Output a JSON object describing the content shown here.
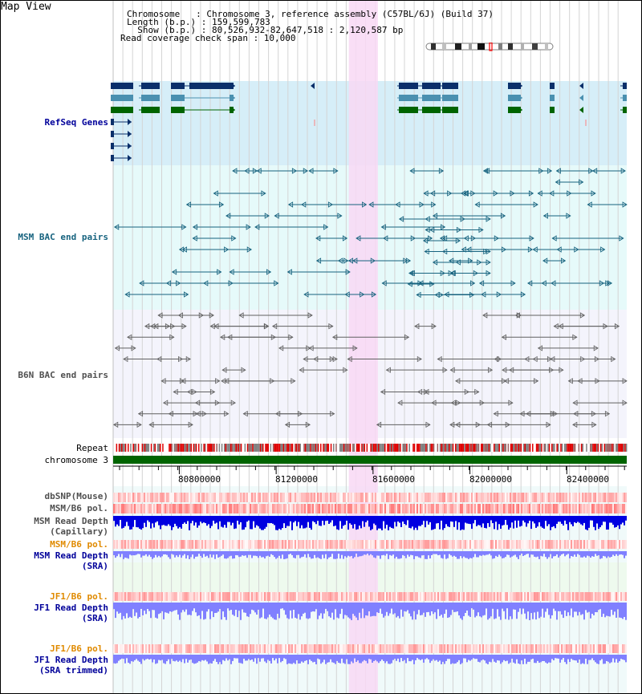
{
  "title": "Map View",
  "info": {
    "chromosome": "Chromosome   : Chromosome 3, reference assembly (C57BL/6J) (Build 37)",
    "length": "Length (b.p.) : 159,599,783",
    "show": "  Show (b.p.) : 80,526,932-82,647,518 : 2,120,587 bp",
    "coverage": "Read coverage check span : 10,000"
  },
  "axis": {
    "start": 80526932,
    "end": 82647518,
    "ticks": [
      "80800000",
      "81200000",
      "81600000",
      "82000000",
      "82400000"
    ],
    "tick_values": [
      80800000,
      81200000,
      81600000,
      82000000,
      82400000
    ],
    "highlight": [
      81500000,
      81620000
    ]
  },
  "tracks": {
    "refseq": "RefSeq Genes",
    "msm_bac": "MSM BAC end pairs",
    "b6n_bac": "B6N BAC end pairs",
    "repeat": "Repeat",
    "chromosome": "chromosome 3",
    "dbsnp": "dbSNP(Mouse)",
    "msm_b6_pol": "MSM/B6 pol.",
    "msm_depth_cap_1": "MSM Read Depth",
    "msm_depth_cap_2": "(Capillary)",
    "msm_b6_pol_sra": "MSM/B6 pol.",
    "msm_depth_sra_1": "MSM Read Depth",
    "msm_depth_sra_2": "(SRA)",
    "jf1_pol": "JF1/B6 pol.",
    "jf1_depth_1": "JF1 Read Depth",
    "jf1_depth_2": "(SRA)",
    "jf1_pol_trim": "JF1/B6 pol.",
    "jf1_trim_1": "JF1 Read Depth",
    "jf1_trim_2": "(SRA trimmed)"
  },
  "colors": {
    "refseq_bg": "#d6eef8",
    "msm_bg": "#e6fafa",
    "b6n_bg": "#f4f4fc",
    "highlight": "#f8d8f4",
    "gene_dark": "#0a2f6a",
    "gene_mid": "#4a90b0",
    "gene_green": "#006400",
    "msm_line": "#17637f",
    "b6n_line": "#606060",
    "chrom_green": "#006400",
    "depth_blue": "#0000e0",
    "depth_light": "#8080ff"
  }
}
